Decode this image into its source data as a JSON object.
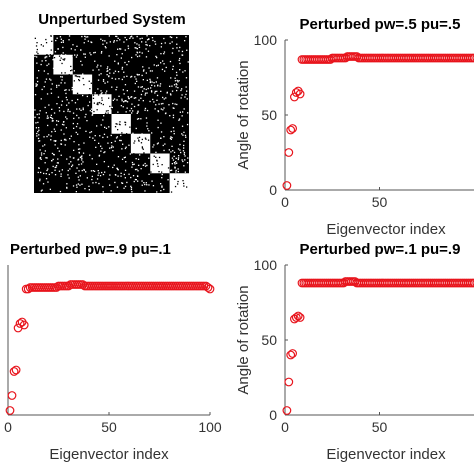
{
  "matrix_panel": {
    "title": "Unperturbed System",
    "blocks": 8,
    "noise_density": 0.09,
    "colors": {
      "background": "#000000",
      "blocks": "#ffffff"
    }
  },
  "chart_data": [
    {
      "id": "panel_top_right",
      "type": "scatter",
      "title": "Perturbed pw=.5 pu=.5",
      "xlabel": "Eigenvector index",
      "ylabel": "Angle of rotation",
      "xlim": [
        0,
        100
      ],
      "ylim": [
        0,
        100
      ],
      "xticks": [
        0,
        50
      ],
      "yticks": [
        0,
        50,
        100
      ],
      "marker": "circle",
      "color": "#e8141c",
      "x": [
        1,
        2,
        3,
        4,
        5,
        6,
        7,
        8,
        9,
        10,
        11,
        12,
        13,
        14,
        15,
        16,
        17,
        18,
        19,
        20,
        21,
        22,
        23,
        24,
        25,
        26,
        27,
        28,
        29,
        30,
        31,
        32,
        33,
        34,
        35,
        36,
        37,
        38,
        39,
        40,
        41,
        42,
        43,
        44,
        45,
        46,
        47,
        48,
        49,
        50,
        51,
        52,
        53,
        54,
        55,
        56,
        57,
        58,
        59,
        60,
        61,
        62,
        63,
        64,
        65,
        66,
        67,
        68,
        69,
        70,
        71,
        72,
        73,
        74,
        75,
        76,
        77,
        78,
        79,
        80,
        81,
        82,
        83,
        84,
        85,
        86,
        87,
        88,
        89,
        90,
        91,
        92,
        93,
        94,
        95,
        96,
        97,
        98,
        99,
        100
      ],
      "y": [
        3,
        25,
        40,
        41,
        62,
        65,
        66,
        64,
        87,
        87,
        87,
        87,
        87,
        87,
        87,
        87,
        87,
        87,
        87,
        87,
        87,
        87,
        87,
        87,
        88,
        88,
        88,
        88,
        88,
        88,
        88,
        88,
        89,
        89,
        89,
        89,
        89,
        89,
        88,
        88,
        88,
        88,
        88,
        88,
        88,
        88,
        88,
        88,
        88,
        88,
        88,
        88,
        88,
        88,
        88,
        88,
        88,
        88,
        88,
        88,
        88,
        88,
        88,
        88,
        88,
        88,
        88,
        88,
        88,
        88,
        88,
        88,
        88,
        88,
        88,
        88,
        88,
        88,
        88,
        88,
        88,
        88,
        88,
        88,
        88,
        88,
        88,
        88,
        88,
        88,
        88,
        88,
        88,
        88,
        88,
        88,
        88,
        88,
        88,
        88
      ]
    },
    {
      "id": "panel_bottom_left",
      "type": "scatter",
      "title": "Perturbed pw=.9 pu=.1",
      "xlabel": "Eigenvector index",
      "ylabel": "",
      "xlim": [
        0,
        100
      ],
      "ylim": [
        0,
        100
      ],
      "xticks": [
        0,
        50,
        100
      ],
      "yticks": [],
      "marker": "circle",
      "color": "#e8141c",
      "x": [
        1,
        2,
        3,
        4,
        5,
        6,
        7,
        8,
        9,
        10,
        11,
        12,
        13,
        14,
        15,
        16,
        17,
        18,
        19,
        20,
        21,
        22,
        23,
        24,
        25,
        26,
        27,
        28,
        29,
        30,
        31,
        32,
        33,
        34,
        35,
        36,
        37,
        38,
        39,
        40,
        41,
        42,
        43,
        44,
        45,
        46,
        47,
        48,
        49,
        50,
        51,
        52,
        53,
        54,
        55,
        56,
        57,
        58,
        59,
        60,
        61,
        62,
        63,
        64,
        65,
        66,
        67,
        68,
        69,
        70,
        71,
        72,
        73,
        74,
        75,
        76,
        77,
        78,
        79,
        80,
        81,
        82,
        83,
        84,
        85,
        86,
        87,
        88,
        89,
        90,
        91,
        92,
        93,
        94,
        95,
        96,
        97,
        98,
        99,
        100
      ],
      "y": [
        3,
        13,
        29,
        30,
        58,
        61,
        62,
        60,
        84,
        84,
        85,
        85,
        85,
        85,
        85,
        85,
        85,
        85,
        85,
        85,
        85,
        85,
        85,
        85,
        86,
        86,
        86,
        86,
        86,
        86,
        87,
        87,
        87,
        87,
        87,
        87,
        87,
        86,
        86,
        86,
        86,
        86,
        86,
        86,
        86,
        86,
        86,
        86,
        86,
        86,
        86,
        86,
        86,
        86,
        86,
        86,
        86,
        86,
        86,
        86,
        86,
        86,
        86,
        86,
        86,
        86,
        86,
        86,
        86,
        86,
        86,
        86,
        86,
        86,
        86,
        86,
        86,
        86,
        86,
        86,
        86,
        86,
        86,
        86,
        86,
        86,
        86,
        86,
        86,
        86,
        86,
        86,
        86,
        86,
        86,
        86,
        86,
        86,
        85,
        84
      ]
    },
    {
      "id": "panel_bottom_right",
      "type": "scatter",
      "title": "Perturbed pw=.1 pu=.9",
      "xlabel": "Eigenvector index",
      "ylabel": "Angle of rotation",
      "xlim": [
        0,
        100
      ],
      "ylim": [
        0,
        100
      ],
      "xticks": [
        0,
        50
      ],
      "yticks": [
        0,
        50,
        100
      ],
      "marker": "circle",
      "color": "#e8141c",
      "x": [
        1,
        2,
        3,
        4,
        5,
        6,
        7,
        8,
        9,
        10,
        11,
        12,
        13,
        14,
        15,
        16,
        17,
        18,
        19,
        20,
        21,
        22,
        23,
        24,
        25,
        26,
        27,
        28,
        29,
        30,
        31,
        32,
        33,
        34,
        35,
        36,
        37,
        38,
        39,
        40,
        41,
        42,
        43,
        44,
        45,
        46,
        47,
        48,
        49,
        50,
        51,
        52,
        53,
        54,
        55,
        56,
        57,
        58,
        59,
        60,
        61,
        62,
        63,
        64,
        65,
        66,
        67,
        68,
        69,
        70,
        71,
        72,
        73,
        74,
        75,
        76,
        77,
        78,
        79,
        80,
        81,
        82,
        83,
        84,
        85,
        86,
        87,
        88,
        89,
        90,
        91,
        92,
        93,
        94,
        95,
        96,
        97,
        98,
        99,
        100
      ],
      "y": [
        3,
        22,
        40,
        41,
        64,
        65,
        66,
        65,
        88,
        88,
        88,
        88,
        88,
        88,
        88,
        88,
        88,
        88,
        88,
        88,
        88,
        88,
        88,
        88,
        88,
        88,
        88,
        88,
        88,
        88,
        88,
        89,
        89,
        89,
        89,
        89,
        89,
        88,
        88,
        88,
        88,
        88,
        88,
        88,
        88,
        88,
        88,
        88,
        88,
        88,
        88,
        88,
        88,
        88,
        88,
        88,
        88,
        88,
        88,
        88,
        88,
        88,
        88,
        88,
        88,
        88,
        88,
        88,
        88,
        88,
        88,
        88,
        88,
        88,
        88,
        88,
        88,
        88,
        88,
        88,
        88,
        88,
        88,
        88,
        88,
        88,
        88,
        88,
        88,
        88,
        88,
        88,
        88,
        88,
        88,
        88,
        88,
        88,
        88,
        88
      ]
    }
  ]
}
